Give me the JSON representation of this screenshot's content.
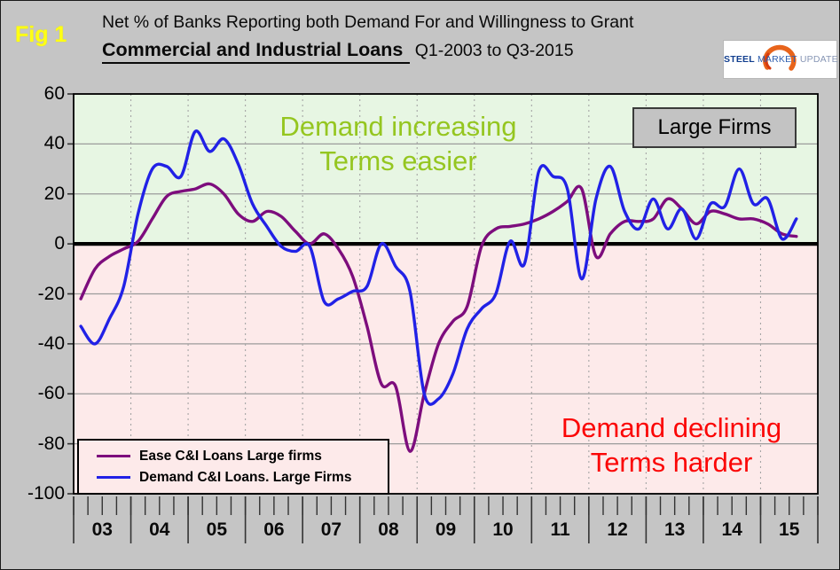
{
  "figure": {
    "fig_label": "Fig 1",
    "title_line1": "Net % of Banks Reporting both Demand For and Willingness to Grant",
    "title_line2_bold": "Commercial and Industrial Loans",
    "title_line2_rest": "Q1-2003 to Q3-2015"
  },
  "logo": {
    "word1": "STEEL",
    "word2": "MARKET",
    "word3": "UPDATE"
  },
  "annotations": {
    "large_firms_label": "Large Firms",
    "increasing_line1": "Demand increasing",
    "increasing_line2": "Terms easier",
    "declining_line1": "Demand declining",
    "declining_line2": "Terms harder"
  },
  "colors": {
    "background": "#c5c5c5",
    "plot_green_zone": "#e7f6e3",
    "plot_pink_zone": "#fdeaea",
    "gridline": "#9b9b9b",
    "dotted_gridline": "#a5a5a5",
    "zero_line": "#000000",
    "ease_line": "#7d0d7d",
    "demand_line": "#2121e6",
    "annotation_green": "#95c620",
    "annotation_red": "#fb0606",
    "fig_label_yellow": "#ffff14",
    "large_firms_box": "#c3c3c3",
    "logo_orange": "#e8641b"
  },
  "chart_data": {
    "type": "line",
    "title": "Net % of Banks Reporting both Demand For and Willingness to Grant Commercial and Industrial Loans",
    "subtitle_range": "Q1-2003 to Q3-2015",
    "frequency": "quarterly",
    "x_start": "2003-Q1",
    "x_end": "2015-Q3",
    "ylim": [
      -100,
      60
    ],
    "y_ticks": [
      60,
      40,
      20,
      0,
      -20,
      -40,
      -60,
      -80,
      -100
    ],
    "year_labels": [
      "03",
      "04",
      "05",
      "06",
      "07",
      "08",
      "09",
      "10",
      "11",
      "12",
      "13",
      "14",
      "15"
    ],
    "grid": "on",
    "legend_position": "bottom-left",
    "zone_above_zero": "Demand increasing / Terms easier",
    "zone_below_zero": "Demand declining / Terms harder",
    "series": [
      {
        "name": "Ease C&I Loans Large firms",
        "color": "#7d0d7d",
        "values": [
          -22,
          -10,
          -5,
          -2,
          1,
          10,
          19,
          21,
          22,
          24,
          20,
          12,
          9,
          13,
          11,
          5,
          0,
          4,
          -2,
          -13,
          -33,
          -56,
          -57,
          -83,
          -60,
          -40,
          -31,
          -25,
          -1,
          6,
          7,
          8,
          10,
          13,
          17,
          22,
          -5,
          4,
          9,
          9,
          10,
          18,
          14,
          8,
          13,
          12,
          10,
          10,
          8,
          4,
          3
        ]
      },
      {
        "name": "Demand C&I Loans. Large Firms",
        "color": "#2121e6",
        "values": [
          -33,
          -40,
          -30,
          -17,
          12,
          30,
          31,
          27,
          45,
          37,
          42,
          32,
          16,
          7,
          -1,
          -3,
          -1,
          -23,
          -22,
          -19,
          -17,
          0,
          -9,
          -19,
          -60,
          -62,
          -52,
          -34,
          -26,
          -20,
          1,
          -8,
          29,
          27,
          22,
          -14,
          18,
          31,
          13,
          6,
          18,
          6,
          14,
          2,
          16,
          15,
          30,
          16,
          18,
          2,
          10
        ]
      }
    ]
  }
}
